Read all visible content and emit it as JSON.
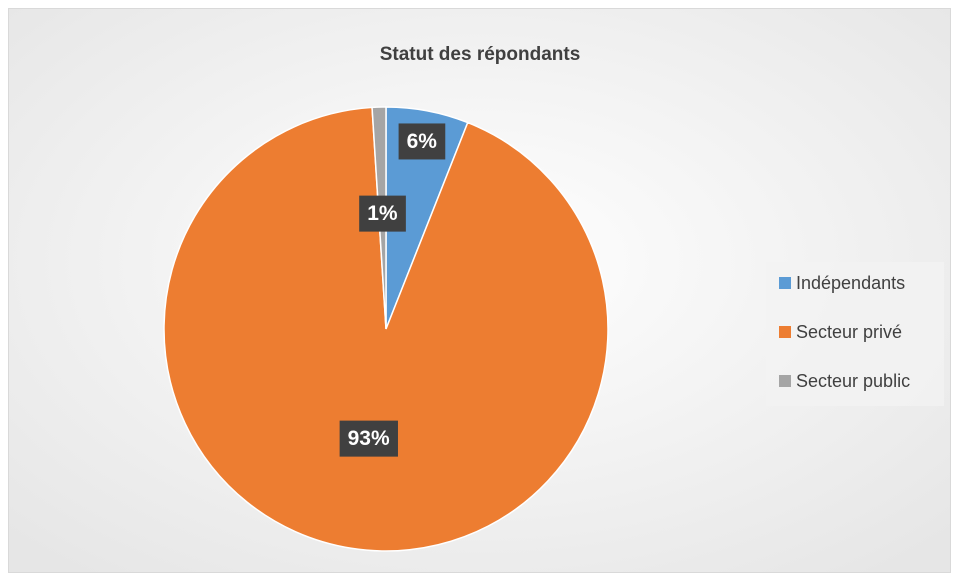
{
  "chart_data": {
    "type": "pie",
    "title": "Statut des répondants",
    "categories": [
      "Indépendants",
      "Secteur privé",
      "Secteur public"
    ],
    "values": [
      6,
      93,
      1
    ],
    "value_labels": [
      "6%",
      "93%",
      "1%"
    ],
    "colors": [
      "#5b9bd5",
      "#ed7d31",
      "#a5a5a5"
    ],
    "legend": "right"
  }
}
